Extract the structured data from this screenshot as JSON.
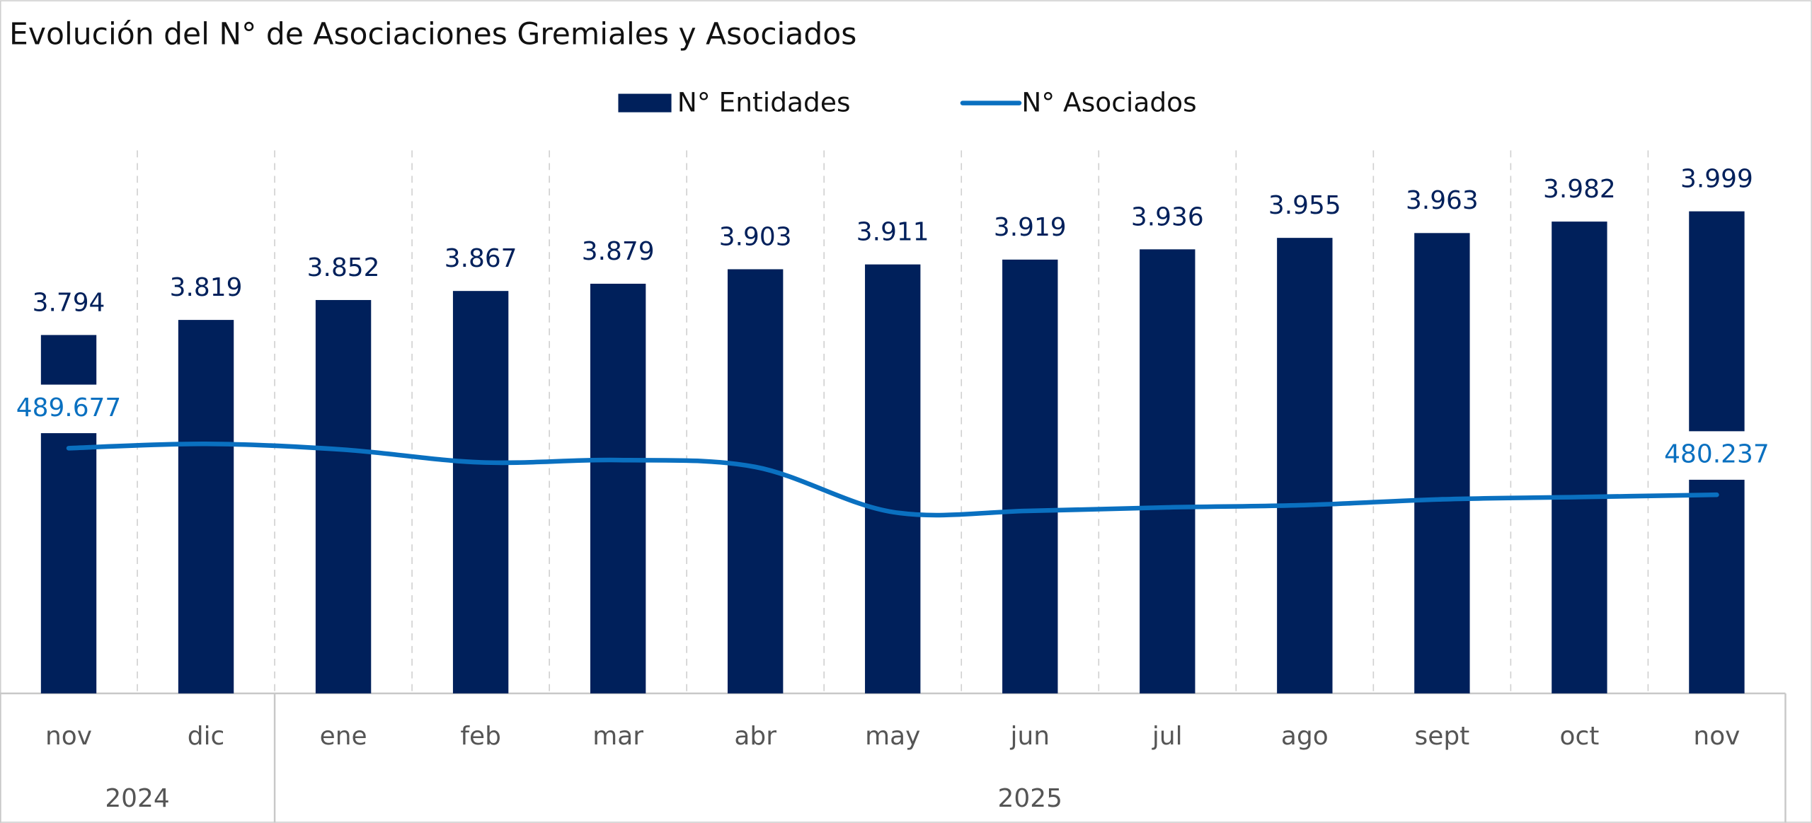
{
  "chart_data": {
    "type": "bar-line",
    "title": "Evolución del N° de Asociaciones Gremiales y Asociados",
    "categories": [
      "nov",
      "dic",
      "ene",
      "feb",
      "mar",
      "abr",
      "may",
      "jun",
      "jul",
      "ago",
      "sept",
      "oct",
      "nov"
    ],
    "groups": [
      {
        "label": "2024",
        "count": 2
      },
      {
        "label": "2025",
        "count": 11
      }
    ],
    "series": [
      {
        "name": "N° Entidades",
        "type": "bar",
        "color": "#00205b",
        "values": [
          3794,
          3819,
          3852,
          3867,
          3879,
          3903,
          3911,
          3919,
          3936,
          3955,
          3963,
          3982,
          3999
        ],
        "value_labels": [
          "3.794",
          "3.819",
          "3.852",
          "3.867",
          "3.879",
          "3.903",
          "3.911",
          "3.919",
          "3.936",
          "3.955",
          "3.963",
          "3.982",
          "3.999"
        ]
      },
      {
        "name": "N° Asociados",
        "type": "line",
        "axis": "y2",
        "color": "#0a70c0",
        "values": [
          489677,
          490550,
          489380,
          486800,
          487270,
          485870,
          476740,
          476980,
          477680,
          478150,
          479320,
          479780,
          480237
        ],
        "value_labels": [
          "489.677",
          null,
          null,
          null,
          null,
          null,
          null,
          null,
          null,
          null,
          null,
          null,
          "480.237"
        ]
      }
    ],
    "ylim": [
      3200,
      4100
    ],
    "y2lim": [
      440000,
      550000
    ],
    "legend": "top"
  }
}
